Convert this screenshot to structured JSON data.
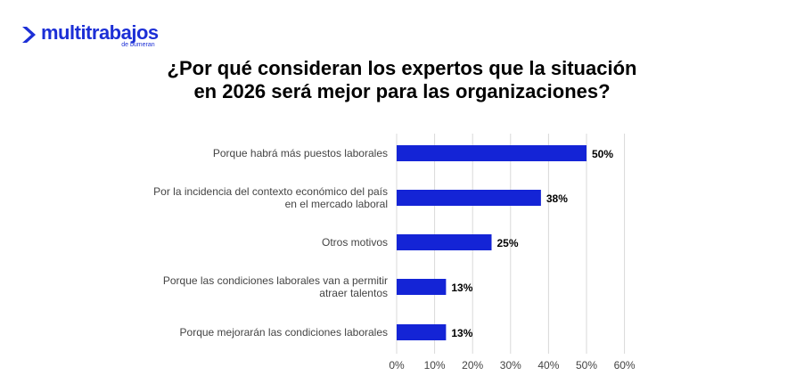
{
  "brand": {
    "name": "multitrabajos",
    "subtitle": "de bumeran",
    "color": "#1c2fd6"
  },
  "chart_data": {
    "type": "bar",
    "orientation": "horizontal",
    "title_lines": [
      "¿Por qué consideran los expertos que la situación",
      "en 2026 será mejor para las organizaciones?"
    ],
    "categories": [
      [
        "Porque habrá más puestos laborales"
      ],
      [
        "Por la incidencia del contexto económico del país",
        "en el mercado laboral"
      ],
      [
        "Otros motivos"
      ],
      [
        "Porque las condiciones laborales van a permitir",
        "atraer talentos"
      ],
      [
        "Porque mejorarán las condiciones laborales"
      ]
    ],
    "values": [
      50,
      38,
      25,
      13,
      13
    ],
    "data_labels": [
      "50%",
      "38%",
      "25%",
      "13%",
      "13%"
    ],
    "xlim": [
      0,
      60
    ],
    "xticks": [
      0,
      10,
      20,
      30,
      40,
      50,
      60
    ],
    "xtick_labels": [
      "0%",
      "10%",
      "20%",
      "30%",
      "40%",
      "50%",
      "60%"
    ],
    "grid": "vertical",
    "bar_color": "#1424d6",
    "grid_color": "#d9d9d9"
  }
}
